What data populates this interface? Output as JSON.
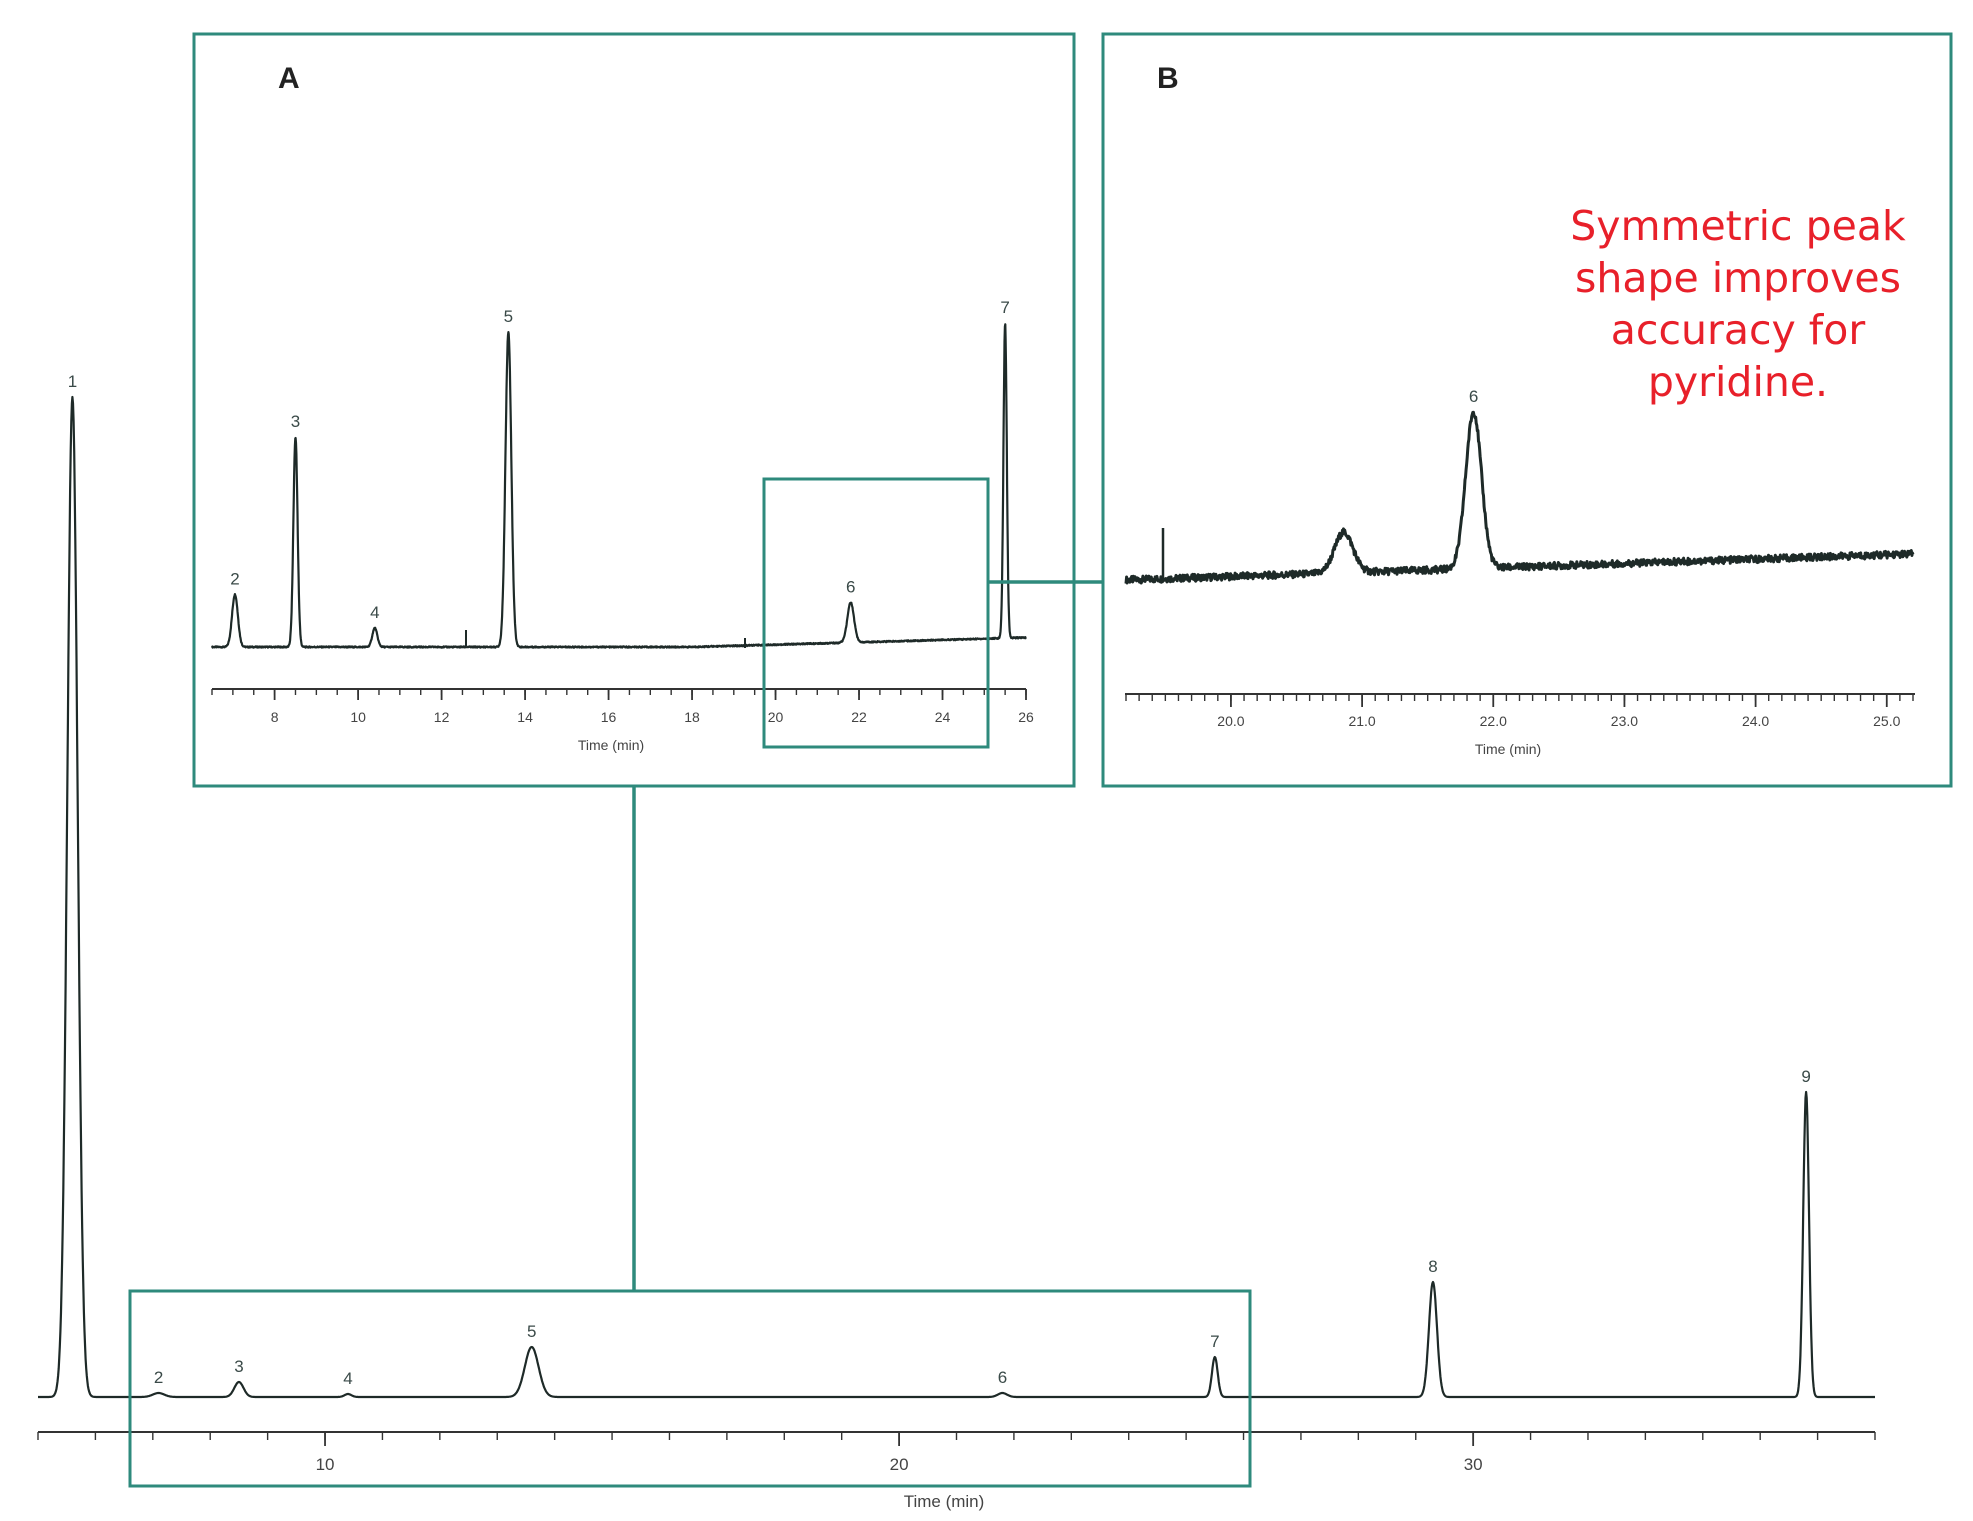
{
  "colors": {
    "frame": "#2e8a7c",
    "trace": "#1e2a28",
    "note": "#e8202a"
  },
  "annotation": {
    "lines": [
      "Symmetric peak",
      "shape improves",
      "accuracy for",
      "pyridine."
    ]
  },
  "chart_data": [
    {
      "id": "main",
      "type": "line",
      "xlabel": "Time (min)",
      "xlim": [
        5,
        37
      ],
      "x_ticks": [
        10,
        20,
        30
      ],
      "baseline": 0,
      "peaks": [
        {
          "label": "1",
          "x": 5.6,
          "height": 100,
          "width": 0.09
        },
        {
          "label": "2",
          "x": 7.1,
          "height": 0.4,
          "width": 0.1
        },
        {
          "label": "3",
          "x": 8.5,
          "height": 1.5,
          "width": 0.08
        },
        {
          "label": "4",
          "x": 10.4,
          "height": 0.3,
          "width": 0.06
        },
        {
          "label": "5",
          "x": 13.6,
          "height": 5.0,
          "width": 0.12
        },
        {
          "label": "6",
          "x": 21.8,
          "height": 0.4,
          "width": 0.08
        },
        {
          "label": "7",
          "x": 25.5,
          "height": 4.0,
          "width": 0.05
        },
        {
          "label": "8",
          "x": 29.3,
          "height": 11.5,
          "width": 0.07
        },
        {
          "label": "9",
          "x": 35.8,
          "height": 30.5,
          "width": 0.05
        }
      ]
    },
    {
      "id": "inset_a",
      "type": "line",
      "panel_label": "A",
      "xlabel": "Time (min)",
      "xlim": [
        6.5,
        26
      ],
      "x_ticks": [
        8,
        10,
        12,
        14,
        16,
        18,
        20,
        22,
        24,
        26
      ],
      "baseline": 0,
      "peaks": [
        {
          "label": "2",
          "x": 7.05,
          "height": 25,
          "width": 0.07
        },
        {
          "label": "3",
          "x": 8.5,
          "height": 100,
          "width": 0.05
        },
        {
          "label": "4",
          "x": 10.4,
          "height": 9,
          "width": 0.06
        },
        {
          "label": "5",
          "x": 13.6,
          "height": 150,
          "width": 0.07
        },
        {
          "label": "6",
          "x": 21.8,
          "height": 19,
          "width": 0.08
        },
        {
          "label": "7",
          "x": 25.5,
          "height": 150,
          "width": 0.04
        }
      ]
    },
    {
      "id": "inset_b",
      "type": "line",
      "panel_label": "B",
      "xlabel": "Time (min)",
      "xlim": [
        19.2,
        25.2
      ],
      "x_ticks": [
        20.0,
        21.0,
        22.0,
        23.0,
        24.0,
        25.0
      ],
      "baseline_start": 0,
      "baseline_end": 4.5,
      "peaks": [
        {
          "label": "",
          "x": 20.86,
          "height": 7,
          "width": 0.07
        },
        {
          "label": "6",
          "x": 21.85,
          "height": 27,
          "width": 0.06
        }
      ]
    }
  ]
}
